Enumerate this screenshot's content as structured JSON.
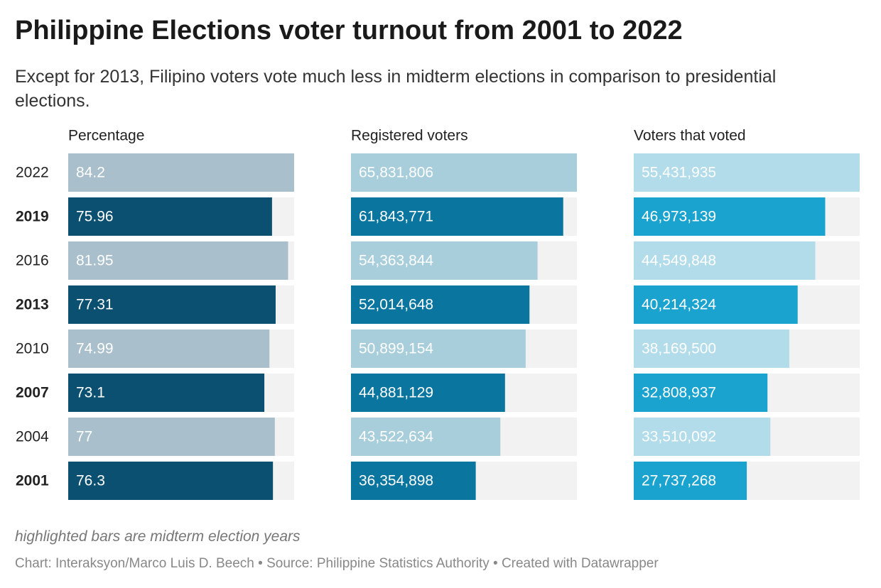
{
  "title": "Philippine Elections voter turnout from 2001 to 2022",
  "subtitle": "Except for 2013, Filipino voters vote much less in midterm elections in comparison to presidential elections.",
  "note": "highlighted bars are midterm election years",
  "source": "Chart: Interaksyon/Marco Luis D. Beech • Source: Philippine Statistics Authority • Created with Datawrapper",
  "chart_data": [
    {
      "type": "bar",
      "title": "Percentage",
      "categories": [
        "2022",
        "2019",
        "2016",
        "2013",
        "2010",
        "2007",
        "2004",
        "2001"
      ],
      "values": [
        84.2,
        75.96,
        81.95,
        77.31,
        74.99,
        73.1,
        77,
        76.3
      ],
      "xlim": [
        0,
        84.2
      ],
      "highlighted": [
        false,
        true,
        false,
        true,
        false,
        true,
        false,
        true
      ],
      "color": "#a9bfcb",
      "highlight_color": "#0b4f71"
    },
    {
      "type": "bar",
      "title": "Registered voters",
      "values": [
        65831806,
        61843771,
        54363844,
        52014648,
        50899154,
        44881129,
        43522634,
        36354898
      ],
      "value_labels": [
        "65,831,806",
        "61,843,771",
        "54,363,844",
        "52,014,648",
        "50,899,154",
        "44,881,129",
        "43,522,634",
        "36,354,898"
      ],
      "xlim": [
        0,
        65831806
      ],
      "highlighted": [
        false,
        true,
        false,
        true,
        false,
        true,
        false,
        true
      ],
      "color": "#a8cedb",
      "highlight_color": "#0a76a0"
    },
    {
      "type": "bar",
      "title": "Voters that voted",
      "values": [
        55431935,
        46973139,
        44549848,
        40214324,
        38169500,
        32808937,
        33510092,
        27737268
      ],
      "value_labels": [
        "55,431,935",
        "46,973,139",
        "44,549,848",
        "40,214,324",
        "38,169,500",
        "32,808,937",
        "33,510,092",
        "27,737,268"
      ],
      "xlim": [
        0,
        55431935
      ],
      "highlighted": [
        false,
        true,
        false,
        true,
        false,
        true,
        false,
        true
      ],
      "color": "#b2dcea",
      "highlight_color": "#1aa3cf"
    }
  ]
}
